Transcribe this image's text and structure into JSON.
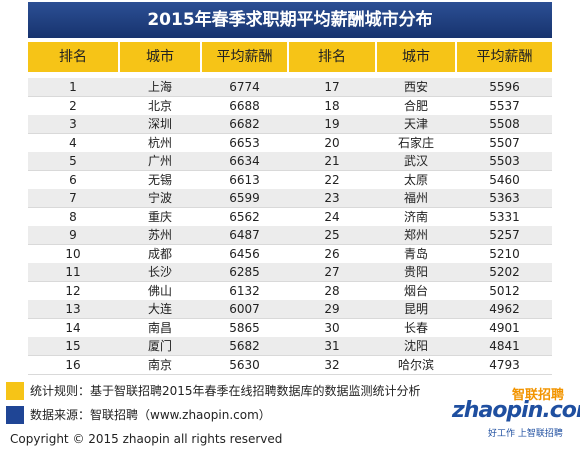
{
  "title": "2015年春季求职期平均薪酬城市分布",
  "table": {
    "header": [
      "排名",
      "城市",
      "平均薪酬",
      "排名",
      "城市",
      "平均薪酬"
    ],
    "rows": [
      [
        1,
        "上海",
        6774,
        17,
        "西安",
        5596
      ],
      [
        2,
        "北京",
        6688,
        18,
        "合肥",
        5537
      ],
      [
        3,
        "深圳",
        6682,
        19,
        "天津",
        5508
      ],
      [
        4,
        "杭州",
        6653,
        20,
        "石家庄",
        5507
      ],
      [
        5,
        "广州",
        6634,
        21,
        "武汉",
        5503
      ],
      [
        6,
        "无锡",
        6613,
        22,
        "太原",
        5460
      ],
      [
        7,
        "宁波",
        6599,
        23,
        "福州",
        5363
      ],
      [
        8,
        "重庆",
        6562,
        24,
        "济南",
        5331
      ],
      [
        9,
        "苏州",
        6487,
        25,
        "郑州",
        5257
      ],
      [
        10,
        "成都",
        6456,
        26,
        "青岛",
        5210
      ],
      [
        11,
        "长沙",
        6285,
        27,
        "贵阳",
        5202
      ],
      [
        12,
        "佛山",
        6132,
        28,
        "烟台",
        5012
      ],
      [
        13,
        "大连",
        6007,
        29,
        "昆明",
        4962
      ],
      [
        14,
        "南昌",
        5865,
        30,
        "长春",
        4901
      ],
      [
        15,
        "厦门",
        5682,
        31,
        "沈阳",
        4841
      ],
      [
        16,
        "南京",
        5630,
        32,
        "哈尔滨",
        4793
      ]
    ]
  },
  "notes": [
    "统计规则：基于智联招聘2015年春季在线招聘数据库的数据监测统计分析",
    "数据来源：智联招聘（www.zhaopin.com）"
  ],
  "logo": {
    "brand": "智联招聘",
    "site": "zhaopin.com",
    "slogan": "好工作 上智联招聘"
  },
  "copyright": "Copyright ©  2015 zhaopin all rights reserved"
}
